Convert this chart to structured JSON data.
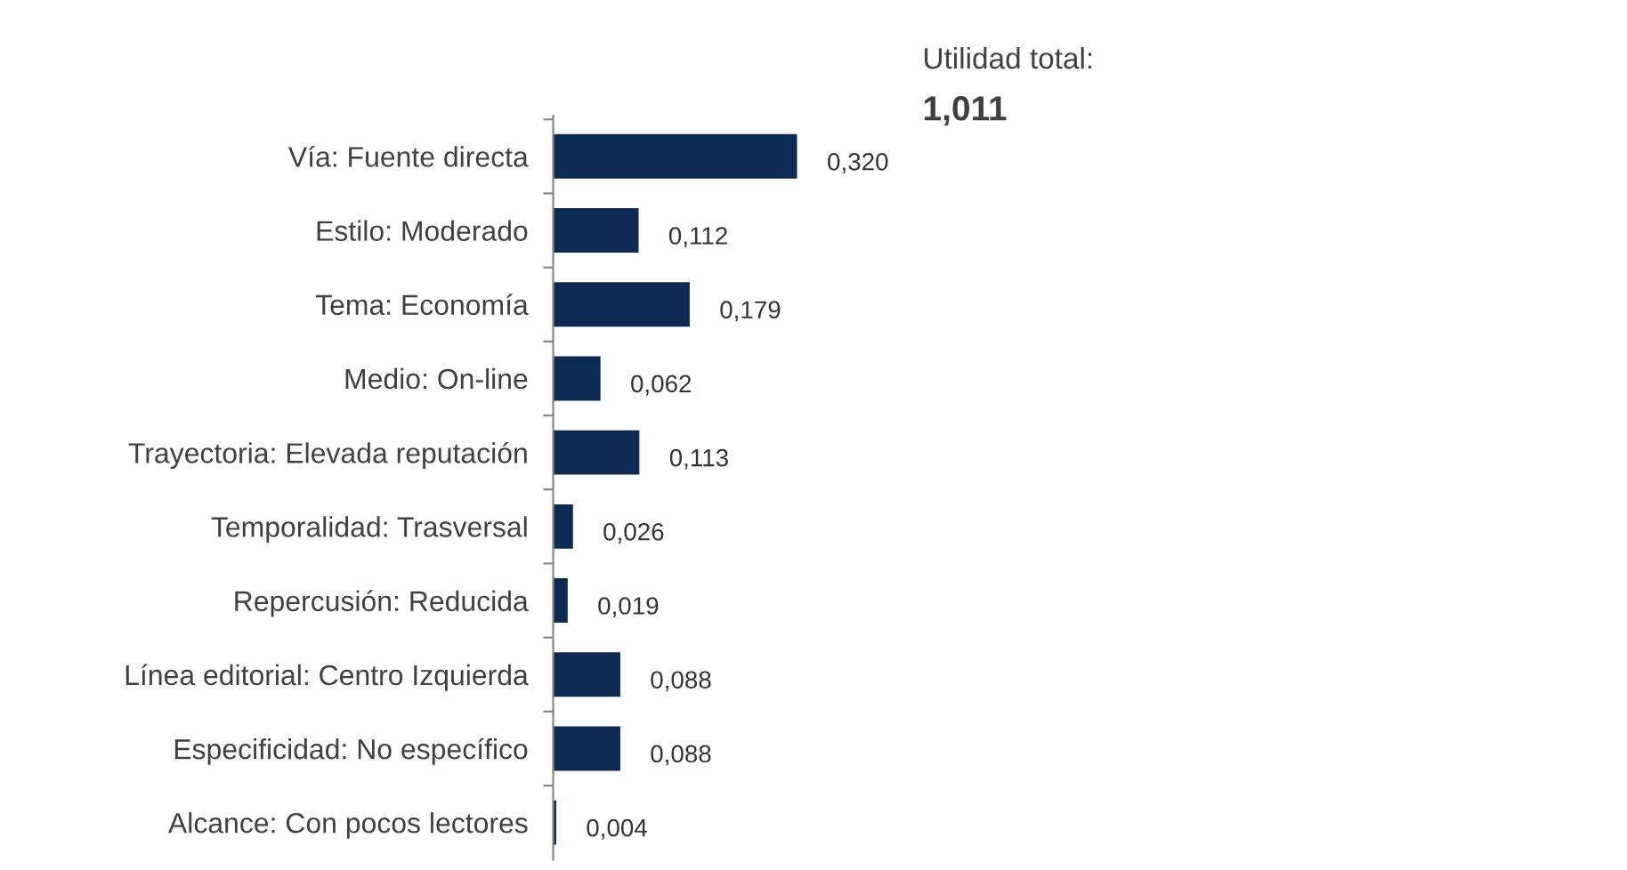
{
  "chart_data": {
    "type": "bar",
    "orientation": "horizontal",
    "categories": [
      "Vía: Fuente directa",
      "Estilo: Moderado",
      "Tema: Economía",
      "Medio: On-line",
      "Trayectoria: Elevada reputación",
      "Temporalidad: Trasversal",
      "Repercusión: Reducida",
      "Línea editorial: Centro Izquierda",
      "Especificidad: No específico",
      "Alcance: Con pocos lectores"
    ],
    "values": [
      0.32,
      0.112,
      0.179,
      0.062,
      0.113,
      0.026,
      0.019,
      0.088,
      0.088,
      0.004
    ],
    "value_labels": [
      "0,320",
      "0,112",
      "0,179",
      "0,062",
      "0,113",
      "0,026",
      "0,019",
      "0,088",
      "0,088",
      "0,004"
    ],
    "color": "#0d2a52",
    "annotations": [
      "Utilidad total:",
      "1,011"
    ],
    "grid": false,
    "legend": false
  }
}
